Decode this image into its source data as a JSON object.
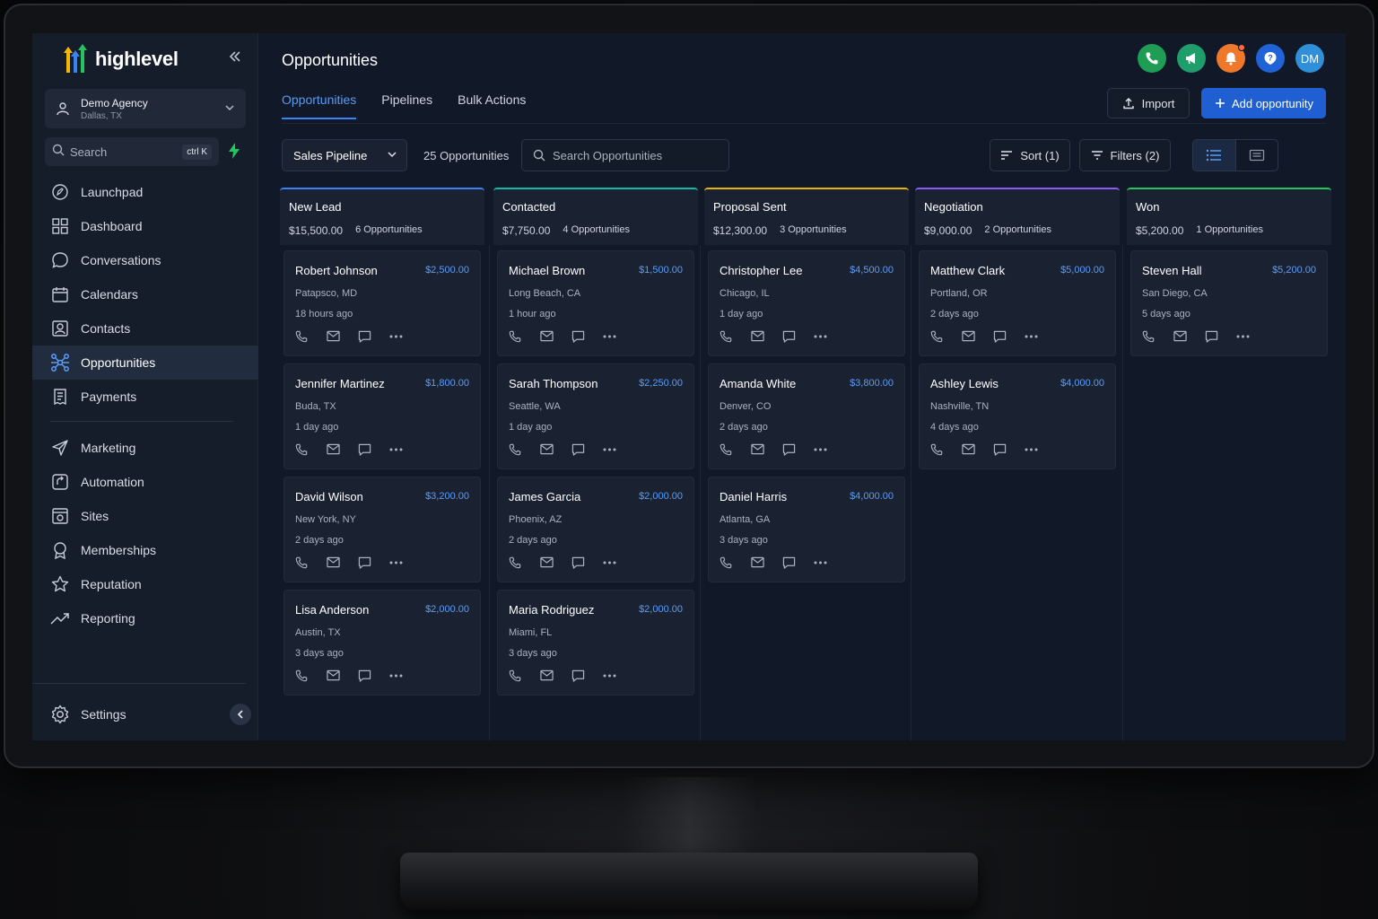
{
  "app": {
    "brand": "highlevel"
  },
  "agency": {
    "name": "Demo Agency",
    "location": "Dallas, TX"
  },
  "search": {
    "label": "Search",
    "shortcut": "ctrl K"
  },
  "nav": [
    {
      "label": "Launchpad",
      "icon": "rocket-icon",
      "active": false
    },
    {
      "label": "Dashboard",
      "icon": "grid-icon",
      "active": false
    },
    {
      "label": "Conversations",
      "icon": "chat-icon",
      "active": false
    },
    {
      "label": "Calendars",
      "icon": "calendar-icon",
      "active": false
    },
    {
      "label": "Contacts",
      "icon": "contact-card-icon",
      "active": false
    },
    {
      "label": "Opportunities",
      "icon": "network-icon",
      "active": true
    },
    {
      "label": "Payments",
      "icon": "receipt-icon",
      "active": false
    }
  ],
  "nav2": [
    {
      "label": "Marketing",
      "icon": "send-icon"
    },
    {
      "label": "Automation",
      "icon": "automation-icon"
    },
    {
      "label": "Sites",
      "icon": "sites-icon"
    },
    {
      "label": "Memberships",
      "icon": "badge-icon"
    },
    {
      "label": "Reputation",
      "icon": "star-icon"
    },
    {
      "label": "Reporting",
      "icon": "trend-icon"
    }
  ],
  "settings": {
    "label": "Settings"
  },
  "header": {
    "title": "Opportunities",
    "avatar_initials": "DM",
    "colors": {
      "phone": "#1f9d55",
      "announce": "#1f9d6b",
      "bell": "#f0782a",
      "help": "#1f63d6",
      "avatar": "#2f8fd8"
    }
  },
  "tabs": [
    {
      "label": "Opportunities",
      "active": true
    },
    {
      "label": "Pipelines",
      "active": false
    },
    {
      "label": "Bulk Actions",
      "active": false
    }
  ],
  "actions": {
    "import": "Import",
    "add": "Add opportunity"
  },
  "toolbar": {
    "pipeline": "Sales Pipeline",
    "count": "25 Opportunities",
    "search_placeholder": "Search Opportunities",
    "sort": "Sort (1)",
    "filters": "Filters (2)"
  },
  "columns": [
    {
      "title": "New Lead",
      "total": "$15,500.00",
      "count": "6 Opportunities",
      "color": "#3b82f6",
      "cards": [
        {
          "name": "Robert Johnson",
          "amount": "$2,500.00",
          "location": "Patapsco, MD",
          "ago": "18 hours ago"
        },
        {
          "name": "Jennifer Martinez",
          "amount": "$1,800.00",
          "location": "Buda, TX",
          "ago": "1 day ago"
        },
        {
          "name": "David Wilson",
          "amount": "$3,200.00",
          "location": "New York, NY",
          "ago": "2 days ago"
        },
        {
          "name": "Lisa Anderson",
          "amount": "$2,000.00",
          "location": "Austin, TX",
          "ago": "3 days ago"
        }
      ]
    },
    {
      "title": "Contacted",
      "total": "$7,750.00",
      "count": "4 Opportunities",
      "color": "#14b8a6",
      "cards": [
        {
          "name": "Michael Brown",
          "amount": "$1,500.00",
          "location": "Long Beach, CA",
          "ago": "1 hour ago"
        },
        {
          "name": "Sarah Thompson",
          "amount": "$2,250.00",
          "location": "Seattle, WA",
          "ago": "1 day ago"
        },
        {
          "name": "James Garcia",
          "amount": "$2,000.00",
          "location": "Phoenix, AZ",
          "ago": "2 days ago"
        },
        {
          "name": "Maria Rodriguez",
          "amount": "$2,000.00",
          "location": "Miami, FL",
          "ago": "3 days ago"
        }
      ]
    },
    {
      "title": "Proposal Sent",
      "total": "$12,300.00",
      "count": "3 Opportunities",
      "color": "#eab308",
      "cards": [
        {
          "name": "Christopher Lee",
          "amount": "$4,500.00",
          "location": "Chicago, IL",
          "ago": "1 day ago"
        },
        {
          "name": "Amanda White",
          "amount": "$3,800.00",
          "location": "Denver, CO",
          "ago": "2 days ago"
        },
        {
          "name": "Daniel Harris",
          "amount": "$4,000.00",
          "location": "Atlanta, GA",
          "ago": "3 days ago"
        }
      ]
    },
    {
      "title": "Negotiation",
      "total": "$9,000.00",
      "count": "2 Opportunities",
      "color": "#8b5cf6",
      "cards": [
        {
          "name": "Matthew Clark",
          "amount": "$5,000.00",
          "location": "Portland, OR",
          "ago": "2 days ago"
        },
        {
          "name": "Ashley Lewis",
          "amount": "$4,000.00",
          "location": "Nashville, TN",
          "ago": "4 days ago"
        }
      ]
    },
    {
      "title": "Won",
      "total": "$5,200.00",
      "count": "1 Opportunities",
      "color": "#22c55e",
      "cards": [
        {
          "name": "Steven Hall",
          "amount": "$5,200.00",
          "location": "San Diego, CA",
          "ago": "5 days ago"
        }
      ]
    }
  ]
}
